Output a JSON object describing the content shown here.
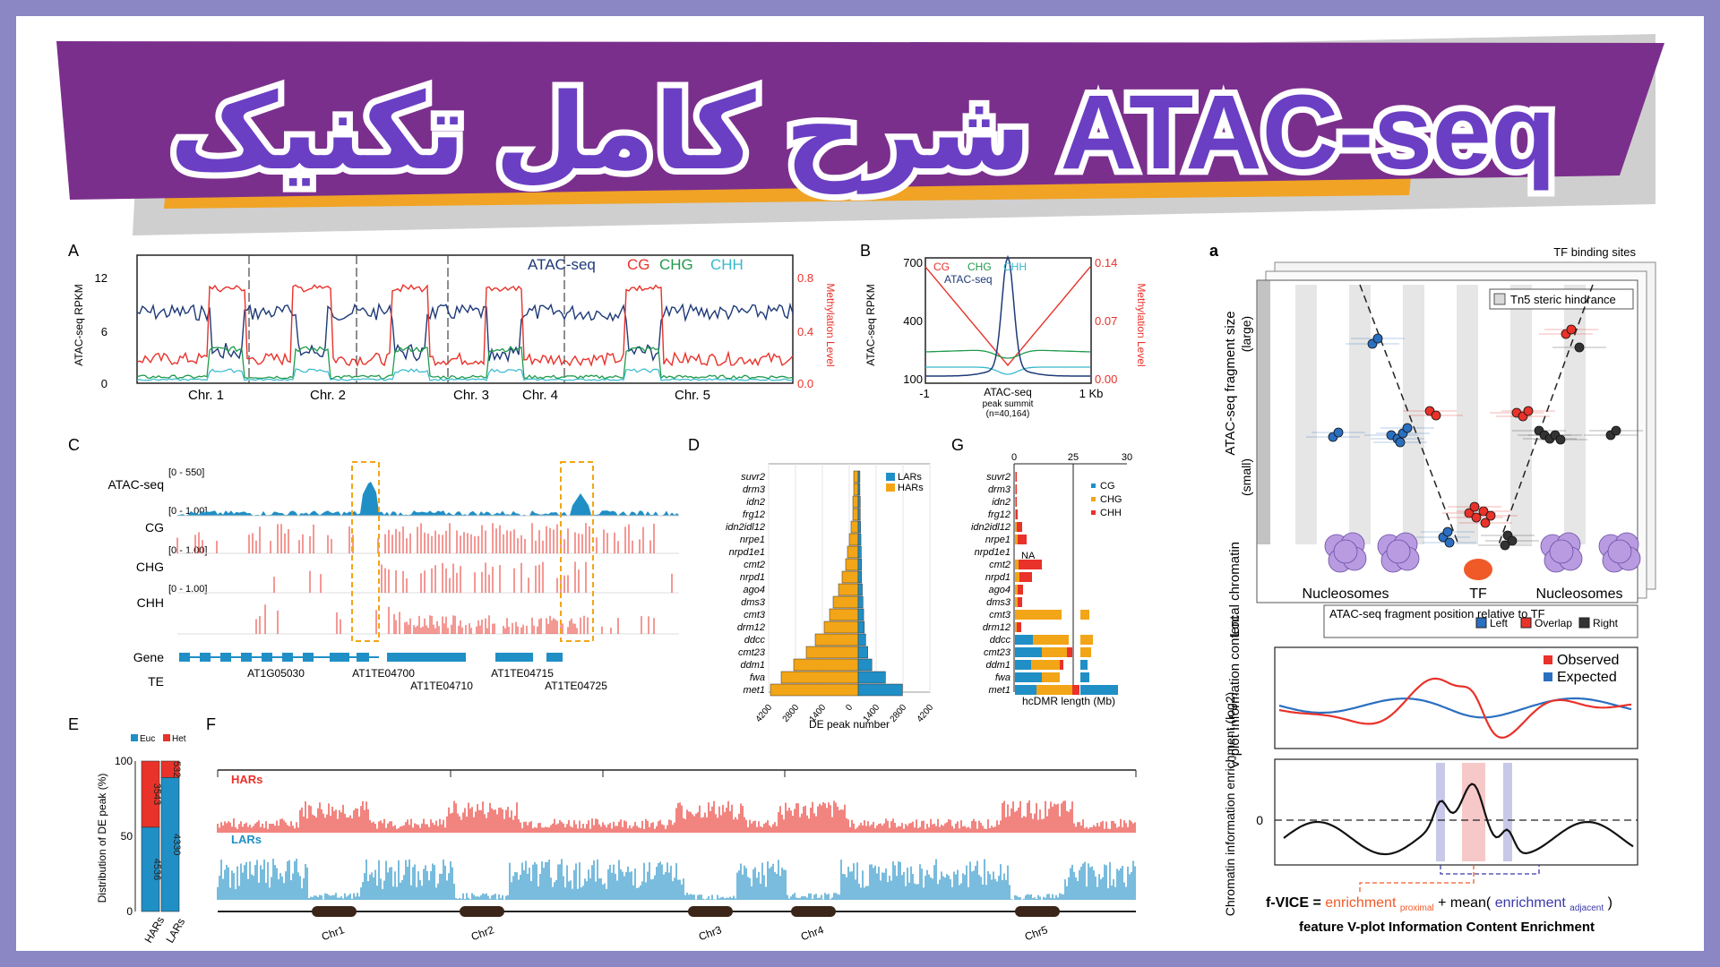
{
  "banner": {
    "title": "شرح کامل تکنیک ATAC-seq"
  },
  "panelA": {
    "letter": "A",
    "ylabel_left": "ATAC-seq RPKM",
    "ylabel_right": "Methylation Level",
    "left_ticks": [
      "12",
      "6",
      "0"
    ],
    "right_ticks": [
      "0.8",
      "0.4",
      "0.0"
    ],
    "legend": [
      "ATAC-seq",
      "CG",
      "CHG",
      "CHH"
    ],
    "chromosomes": [
      "Chr. 1",
      "Chr. 2",
      "Chr. 3",
      "Chr. 4",
      "Chr. 5"
    ]
  },
  "panelB": {
    "letter": "B",
    "ylabel_left": "ATAC-seq RPKM",
    "ylabel_right": "Methylation Level",
    "left_ticks": [
      "700",
      "400",
      "100"
    ],
    "right_ticks": [
      "0.14",
      "0.07",
      "0.00"
    ],
    "legend": [
      "CG",
      "CHG",
      "CHH",
      "ATAC-seq"
    ],
    "x_left": "-1",
    "x_right": "1 Kb",
    "x_center": [
      "ATAC-seq",
      "peak summit",
      "(n=40,164)"
    ]
  },
  "panelC": {
    "letter": "C",
    "tracks": [
      {
        "name": "ATAC-seq",
        "range": "[0 - 550]"
      },
      {
        "name": "CG",
        "range": "[0 - 1.00]"
      },
      {
        "name": "CHG",
        "range": "[0 - 1.00]"
      },
      {
        "name": "CHH",
        "range": "[0 - 1.00]"
      }
    ],
    "gene_label": "Gene",
    "te_label": "TE",
    "features": [
      "AT1G05030",
      "AT1TE04700",
      "AT1TE04710",
      "AT1TE04715",
      "AT1TE04725"
    ]
  },
  "panelD": {
    "letter": "D",
    "genes": [
      "suvr2",
      "drm3",
      "idn2",
      "frg12",
      "idn2idl12",
      "nrpe1",
      "nrpd1e1",
      "cmt2",
      "nrpd1",
      "ago4",
      "dms3",
      "cmt3",
      "drm12",
      "ddcc",
      "cmt23",
      "ddm1",
      "fwa",
      "met1"
    ],
    "legend": [
      "LARs",
      "HARs"
    ],
    "x_ticks": [
      "4200",
      "2800",
      "1400",
      "0",
      "1400",
      "2800",
      "4200"
    ],
    "xlabel": "DE peak number"
  },
  "panelG": {
    "letter": "G",
    "genes": [
      "suvr2",
      "drm3",
      "idn2",
      "frg12",
      "idn2idl12",
      "nrpe1",
      "nrpd1e1",
      "cmt2",
      "nrpd1",
      "ago4",
      "dms3",
      "cmt3",
      "drm12",
      "ddcc",
      "cmt23",
      "ddm1",
      "fwa",
      "met1"
    ],
    "na_label": "NA",
    "legend": [
      "CG",
      "CHG",
      "CHH"
    ],
    "top_ticks": [
      "0",
      "25",
      "30"
    ],
    "xlabel": "hcDMR length (Mb)"
  },
  "panelE": {
    "letter": "E",
    "legend": [
      "Euc",
      "Het"
    ],
    "ylabel": "Distribution of DE peak (%)",
    "y_ticks": [
      "100",
      "50",
      "0"
    ],
    "bars": [
      {
        "label": "HARs",
        "euc": "4536",
        "het": "3543"
      },
      {
        "label": "LARs",
        "euc": "4330",
        "het": "532"
      }
    ]
  },
  "panelF": {
    "letter": "F",
    "track1": "HARs",
    "track2": "LARs",
    "chromosomes": [
      "Chr1",
      "Chr2",
      "Chr3",
      "Chr4",
      "Chr5"
    ]
  },
  "panela": {
    "letter": "a",
    "tf_sites": "TF binding sites",
    "hindrance": "Tn5 steric hindrance",
    "ylabel": "ATAC-seq fragment size",
    "large": "(large)",
    "small": "(small)",
    "local": "Local chromatin",
    "nucleosomes": "Nucleosomes",
    "tf": "TF",
    "position_title": "ATAC-seq fragment position relative to TF",
    "position_legend": [
      "Left",
      "Overlap",
      "Right"
    ],
    "vplot_label": "V-plot Information content",
    "vplot_legend": [
      "Observed",
      "Expected"
    ],
    "enrich_label": "Chromatin information enrichment (log2)",
    "zero": "0",
    "formula_parts": [
      "f-VICE = ",
      "enrichment",
      "proximal",
      " + mean(",
      "enrichment",
      "adjacent",
      ")"
    ],
    "feature_caption": "feature V-plot Information Content Enrichment"
  },
  "colors": {
    "banner_purple": "#7b2f8c",
    "banner_orange": "#f0a325",
    "title_purple": "#6a3fc4",
    "atac_navy": "#1e3a78",
    "cg_red": "#e8322a",
    "chg_green": "#1f9a4a",
    "chh_cyan": "#35b9cc",
    "lars_blue": "#1f8fc6",
    "hars_orange": "#f2a516"
  }
}
